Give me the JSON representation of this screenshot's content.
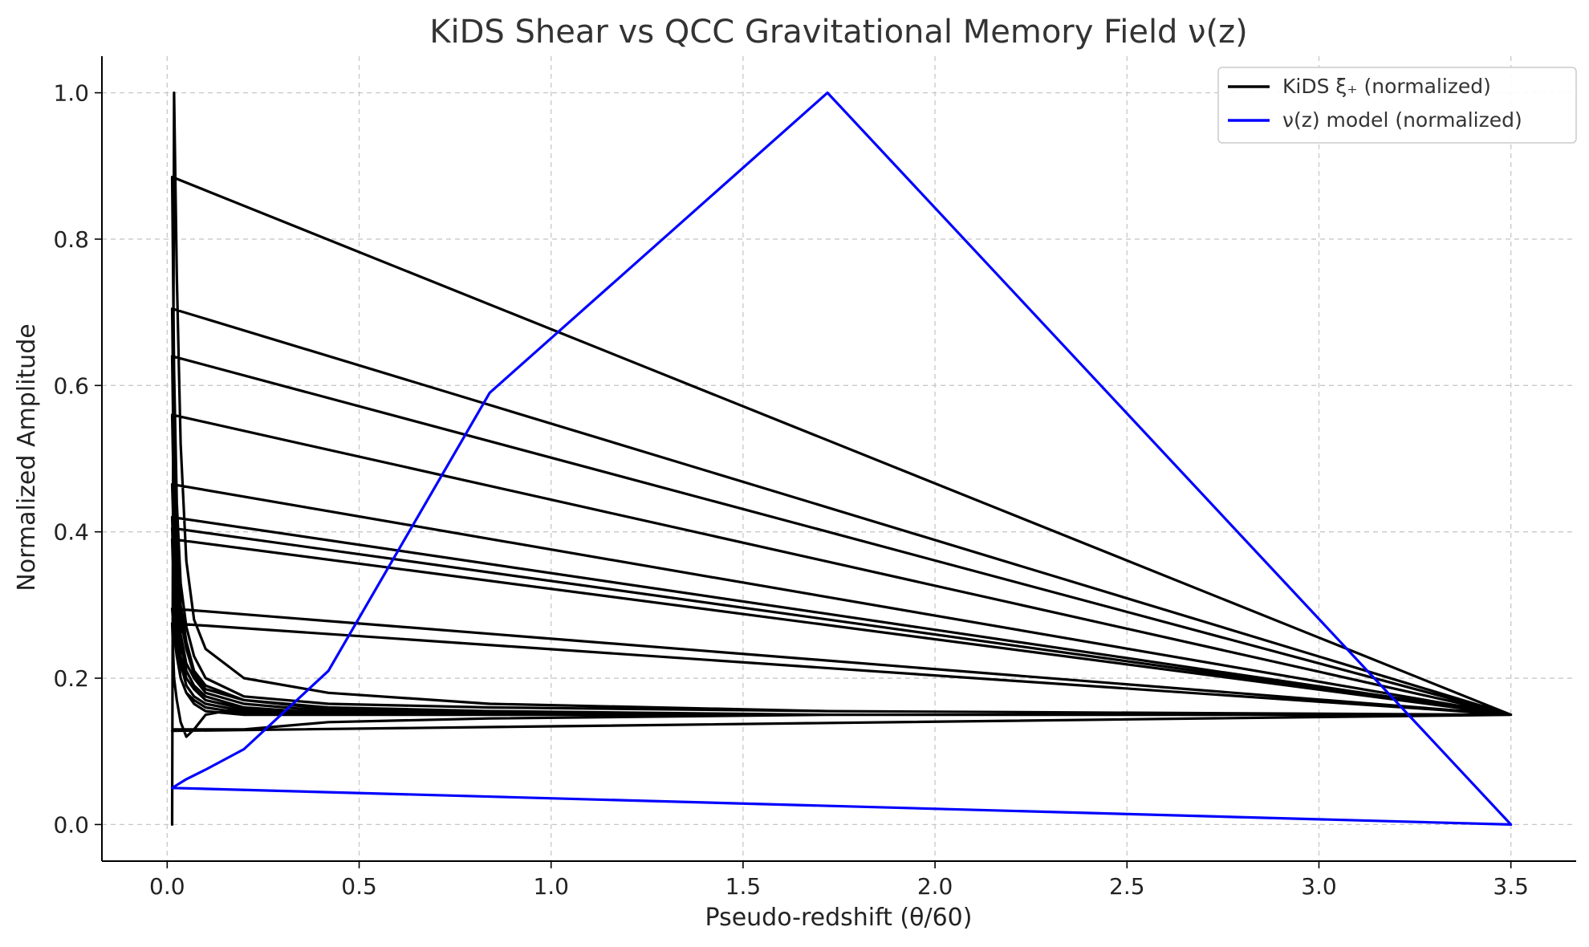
{
  "chart_data": {
    "type": "line",
    "title": "KiDS Shear vs QCC Gravitational Memory Field ν(z)",
    "xlabel": "Pseudo-redshift (θ/60)",
    "ylabel": "Normalized Amplitude",
    "xlim": [
      -0.17,
      3.67
    ],
    "ylim": [
      -0.05,
      1.05
    ],
    "xticks": [
      0.0,
      0.5,
      1.0,
      1.5,
      2.0,
      2.5,
      3.0,
      3.5
    ],
    "xtick_labels": [
      "0.0",
      "0.5",
      "1.0",
      "1.5",
      "2.0",
      "2.5",
      "3.0",
      "3.5"
    ],
    "yticks": [
      0.0,
      0.2,
      0.4,
      0.6,
      0.8,
      1.0
    ],
    "ytick_labels": [
      "0.0",
      "0.2",
      "0.4",
      "0.6",
      "0.8",
      "1.0"
    ],
    "grid": true,
    "legend_position": "top-right",
    "series": [
      {
        "name": "KiDS ξ₊ (normalized)",
        "color": "#000000",
        "x": [
          0.013,
          0.018,
          0.025,
          0.035,
          0.05,
          0.07,
          0.1,
          0.2,
          0.42,
          0.84,
          1.72,
          3.5,
          0.013,
          0.018,
          0.025,
          0.035,
          0.05,
          0.07,
          0.1,
          0.2,
          0.42,
          0.84,
          1.72,
          3.5,
          0.013,
          0.018,
          0.025,
          0.035,
          0.05,
          0.07,
          0.1,
          0.2,
          0.42,
          0.84,
          1.72,
          3.5,
          0.013,
          0.018,
          0.025,
          0.035,
          0.05,
          0.07,
          0.1,
          0.2,
          0.42,
          0.84,
          1.72,
          3.5,
          0.013,
          0.018,
          0.025,
          0.035,
          0.05,
          0.07,
          0.1,
          0.2,
          0.42,
          0.84,
          1.72,
          3.5,
          0.013,
          0.018,
          0.025,
          0.035,
          0.05,
          0.07,
          0.1,
          0.2,
          0.42,
          0.84,
          1.72,
          3.5,
          0.013,
          0.018,
          0.025,
          0.035,
          0.05,
          0.07,
          0.1,
          0.2,
          0.42,
          0.84,
          1.72,
          3.5,
          0.013,
          0.018,
          0.025,
          0.035,
          0.05,
          0.07,
          0.1,
          0.2,
          0.42,
          0.84,
          1.72,
          3.5,
          0.013,
          0.018,
          0.025,
          0.035,
          0.05,
          0.07,
          0.1,
          0.2,
          0.42,
          0.84,
          1.72,
          3.5,
          0.013,
          0.018,
          0.025,
          0.035,
          0.05,
          0.07,
          0.1,
          0.2,
          0.42,
          0.84,
          1.72,
          3.5,
          0.013,
          0.018,
          0.025,
          0.035,
          0.05,
          0.07,
          0.1,
          0.2,
          0.42,
          0.84,
          1.72,
          3.5,
          0.013,
          0.018,
          0.025,
          0.035,
          0.05,
          0.07,
          0.1,
          0.2,
          0.42,
          0.84,
          1.72,
          3.5
        ],
        "y": [
          0.0,
          1.0,
          0.75,
          0.52,
          0.36,
          0.28,
          0.24,
          0.2,
          0.18,
          0.165,
          0.155,
          0.15,
          0.885,
          0.62,
          0.44,
          0.33,
          0.27,
          0.23,
          0.2,
          0.175,
          0.165,
          0.16,
          0.155,
          0.15,
          0.705,
          0.5,
          0.38,
          0.3,
          0.25,
          0.21,
          0.19,
          0.17,
          0.16,
          0.155,
          0.15,
          0.15,
          0.64,
          0.47,
          0.36,
          0.28,
          0.24,
          0.205,
          0.185,
          0.17,
          0.158,
          0.152,
          0.15,
          0.15,
          0.56,
          0.43,
          0.33,
          0.26,
          0.22,
          0.2,
          0.18,
          0.165,
          0.155,
          0.152,
          0.15,
          0.15,
          0.465,
          0.38,
          0.3,
          0.25,
          0.21,
          0.19,
          0.175,
          0.16,
          0.152,
          0.15,
          0.15,
          0.15,
          0.42,
          0.34,
          0.28,
          0.23,
          0.2,
          0.185,
          0.17,
          0.158,
          0.15,
          0.15,
          0.15,
          0.15,
          0.405,
          0.33,
          0.27,
          0.22,
          0.19,
          0.175,
          0.165,
          0.155,
          0.15,
          0.15,
          0.15,
          0.15,
          0.39,
          0.3,
          0.25,
          0.2,
          0.18,
          0.17,
          0.16,
          0.152,
          0.15,
          0.15,
          0.15,
          0.15,
          0.295,
          0.26,
          0.23,
          0.2,
          0.18,
          0.165,
          0.155,
          0.15,
          0.15,
          0.15,
          0.15,
          0.15,
          0.275,
          0.2,
          0.17,
          0.14,
          0.12,
          0.13,
          0.15,
          0.16,
          0.15,
          0.15,
          0.15,
          0.15,
          0.128,
          0.13,
          0.13,
          0.13,
          0.13,
          0.13,
          0.13,
          0.13,
          0.14,
          0.145,
          0.15,
          0.15
        ]
      },
      {
        "name": "ν(z) model (normalized)",
        "color": "#0000ff",
        "x": [
          0.013,
          0.05,
          0.1,
          0.2,
          0.42,
          0.84,
          1.72,
          3.5,
          0.013
        ],
        "y": [
          0.05,
          0.062,
          0.075,
          0.103,
          0.21,
          0.59,
          1.0,
          0.0,
          0.05
        ]
      }
    ]
  }
}
